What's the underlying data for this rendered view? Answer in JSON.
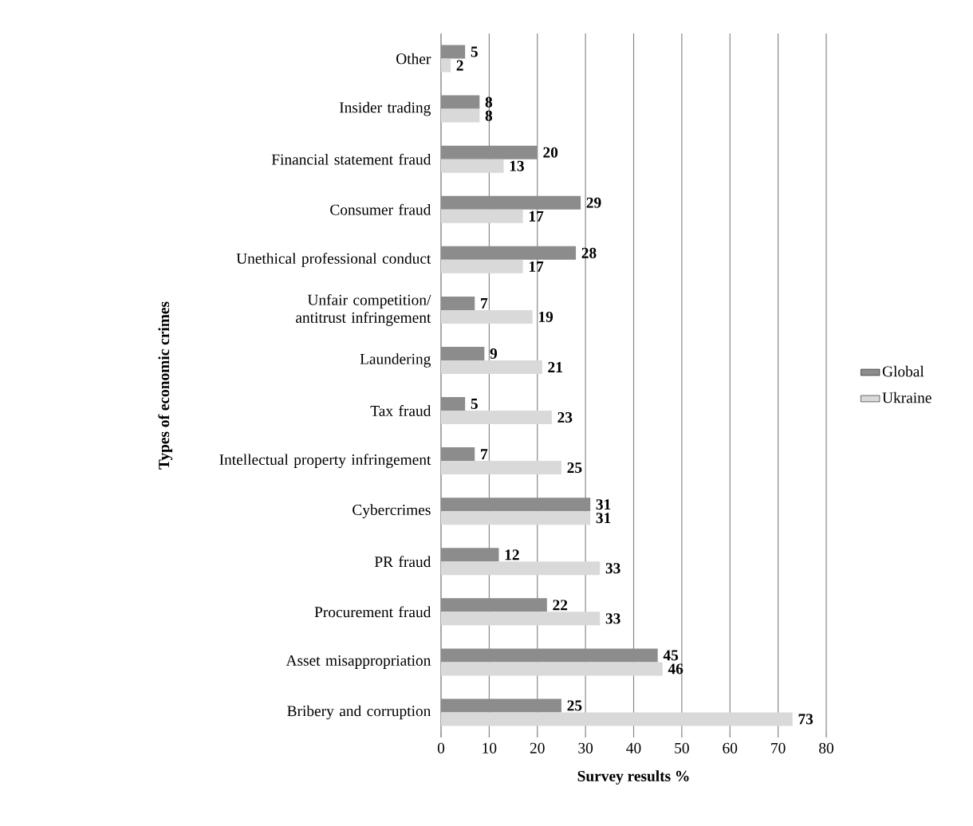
{
  "chart_data": {
    "type": "bar",
    "orientation": "horizontal",
    "xlabel": "Survey results %",
    "ylabel": "Types of economic crimes",
    "categories": [
      "Other",
      "Insider trading",
      "Financial statement fraud",
      "Consumer fraud",
      "Unethical professional conduct",
      "Unfair competition/ antitrust infringement",
      "Laundering",
      "Tax fraud",
      "Intellectual property infringement",
      "Cybercrimes",
      "PR fraud",
      "Procurement fraud",
      "Asset misappropriation",
      "Bribery and corruption"
    ],
    "series": [
      {
        "name": "Global",
        "color": "#8c8c8c",
        "values": [
          5,
          8,
          20,
          29,
          28,
          7,
          9,
          5,
          7,
          31,
          12,
          22,
          45,
          25
        ]
      },
      {
        "name": "Ukraine",
        "color": "#d9d9d9",
        "values": [
          2,
          8,
          13,
          17,
          17,
          19,
          21,
          23,
          25,
          31,
          33,
          33,
          46,
          73
        ]
      }
    ],
    "xlim": [
      0,
      80
    ],
    "xticks": [
      0,
      10,
      20,
      30,
      40,
      50,
      60,
      70,
      80
    ],
    "grid": "x",
    "legend": "right",
    "data_labels": true
  }
}
